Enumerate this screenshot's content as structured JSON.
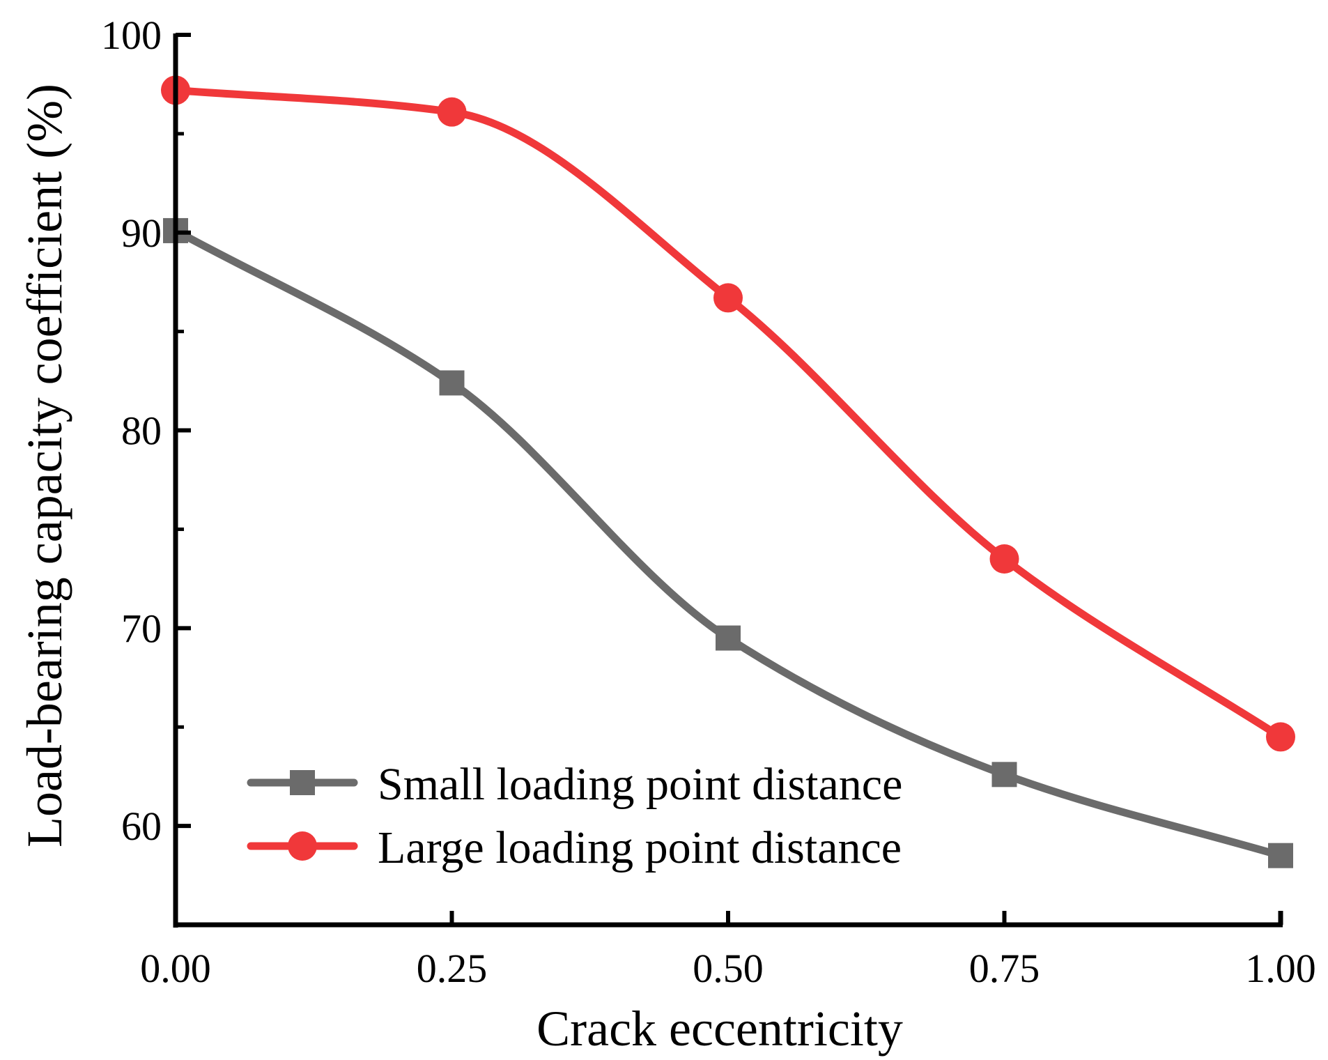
{
  "chart_data": {
    "type": "line",
    "xlabel": "Crack eccentricity",
    "ylabel": "Load-bearing capacity coefficient (%)",
    "xlim": [
      0,
      1.0
    ],
    "ylim": [
      55,
      100
    ],
    "x_ticks": [
      0,
      0.25,
      0.5,
      0.75,
      1.0
    ],
    "x_tick_labels": [
      "0.00",
      "0.25",
      "0.50",
      "0.75",
      "1.00"
    ],
    "y_ticks": [
      60,
      70,
      80,
      90,
      100
    ],
    "y_tick_labels": [
      "60",
      "70",
      "80",
      "90",
      "100"
    ],
    "y_minor_ticks": [
      65,
      75,
      85,
      95
    ],
    "grid": false,
    "legend_position": "bottom-left",
    "x": [
      0,
      0.25,
      0.5,
      0.75,
      1.0
    ],
    "series": [
      {
        "name": "Small loading point distance",
        "values": [
          90.1,
          82.4,
          69.5,
          62.6,
          58.5
        ],
        "color": "#6b6b6b",
        "marker": "square"
      },
      {
        "name": "Large loading point distance",
        "values": [
          97.2,
          96.1,
          86.7,
          73.5,
          64.5
        ],
        "color": "#f0383a",
        "marker": "circle"
      }
    ]
  }
}
